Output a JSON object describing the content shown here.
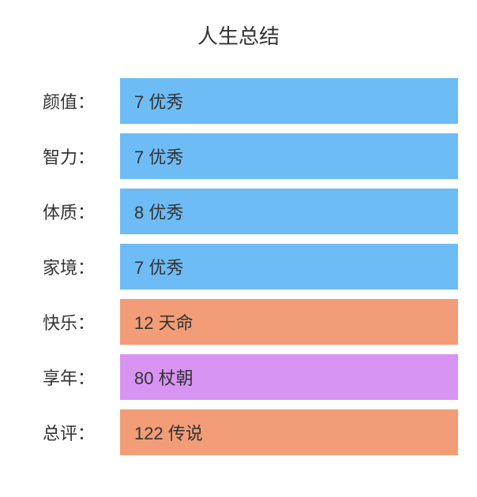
{
  "title": "人生总结",
  "colors": {
    "label_bg": "#ffffff",
    "row_bg_container": "#ffffff"
  },
  "rows": [
    {
      "label": "颜值：",
      "value": "7 优秀",
      "bg": "#6ebcf5",
      "label_bg": "#ffffff"
    },
    {
      "label": "智力：",
      "value": "7 优秀",
      "bg": "#6ebcf5",
      "label_bg": "#ffffff"
    },
    {
      "label": "体质：",
      "value": "8 优秀",
      "bg": "#6ebcf5",
      "label_bg": "#ffffff"
    },
    {
      "label": "家境：",
      "value": "7 优秀",
      "bg": "#6ebcf5",
      "label_bg": "#ffffff"
    },
    {
      "label": "快乐：",
      "value": "12 天命",
      "bg": "#f29d77",
      "label_bg": "#ffffff"
    },
    {
      "label": "享年：",
      "value": "80 杖朝",
      "bg": "#d894f2",
      "label_bg": "#ffffff"
    },
    {
      "label": "总评：",
      "value": "122 传说",
      "bg": "#f29d77",
      "label_bg": "#ffffff"
    }
  ]
}
